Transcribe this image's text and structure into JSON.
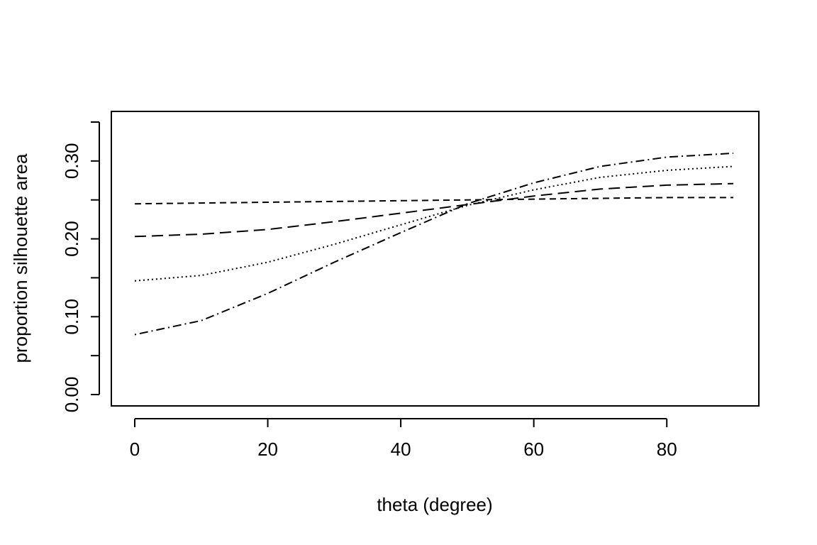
{
  "chart_data": {
    "type": "line",
    "title": "",
    "xlabel": "theta (degree)",
    "ylabel": "proportion silhouette area",
    "xlim": [
      0,
      90
    ],
    "ylim": [
      0.0,
      0.35
    ],
    "x_ticks": [
      0,
      20,
      40,
      60,
      80
    ],
    "x_tick_labels": [
      "0",
      "20",
      "40",
      "60",
      "80"
    ],
    "y_ticks": [
      0.0,
      0.05,
      0.1,
      0.15,
      0.2,
      0.25,
      0.3,
      0.35
    ],
    "y_tick_labels": [
      "0.00",
      "",
      "0.10",
      "",
      "0.20",
      "",
      "0.30",
      ""
    ],
    "grid": false,
    "line_color": "#000000",
    "x": [
      0,
      10,
      20,
      30,
      40,
      50,
      60,
      70,
      80,
      90
    ],
    "series": [
      {
        "line_style": "dashed",
        "values": [
          0.245,
          0.246,
          0.247,
          0.248,
          0.249,
          0.25,
          0.251,
          0.252,
          0.253,
          0.253
        ]
      },
      {
        "line_style": "long-dashed",
        "values": [
          0.203,
          0.206,
          0.212,
          0.222,
          0.233,
          0.244,
          0.255,
          0.264,
          0.269,
          0.271
        ]
      },
      {
        "line_style": "dotted",
        "values": [
          0.146,
          0.153,
          0.17,
          0.193,
          0.218,
          0.243,
          0.263,
          0.279,
          0.288,
          0.293
        ]
      },
      {
        "line_style": "dot-dash",
        "values": [
          0.077,
          0.095,
          0.13,
          0.17,
          0.208,
          0.245,
          0.272,
          0.293,
          0.305,
          0.31
        ]
      }
    ]
  }
}
